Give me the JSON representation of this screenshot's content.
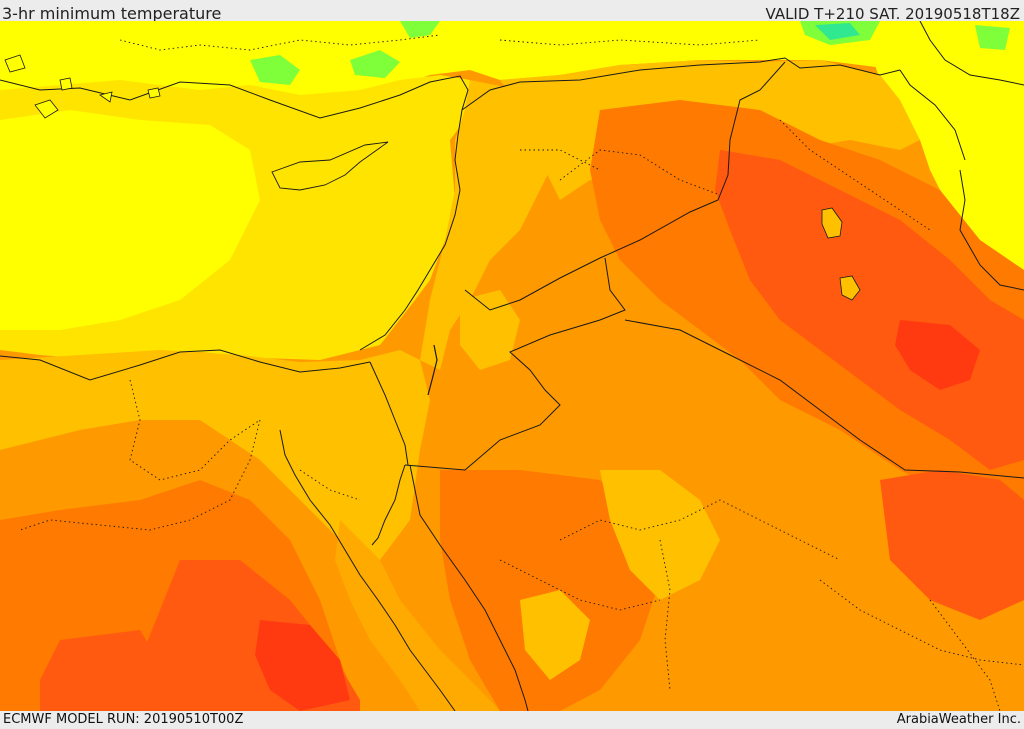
{
  "header": {
    "title": "3-hr minimum temperature",
    "valid": "VALID T+210 SAT. 20190518T18Z"
  },
  "footer": {
    "model_run": "ECMWF MODEL RUN: 20190510T00Z",
    "credit": "ArabiaWeather Inc."
  },
  "colors": {
    "cool_yellow": "#ffff00",
    "pale_yellow": "#ffe400",
    "light_orange": "#ffc000",
    "orange": "#ff9900",
    "deep_orange": "#ff7a00",
    "red_orange": "#ff5a10",
    "red": "#ff3a10",
    "green": "#7fff3a",
    "cyan": "#30e890",
    "borders": "#1a1a1a"
  }
}
